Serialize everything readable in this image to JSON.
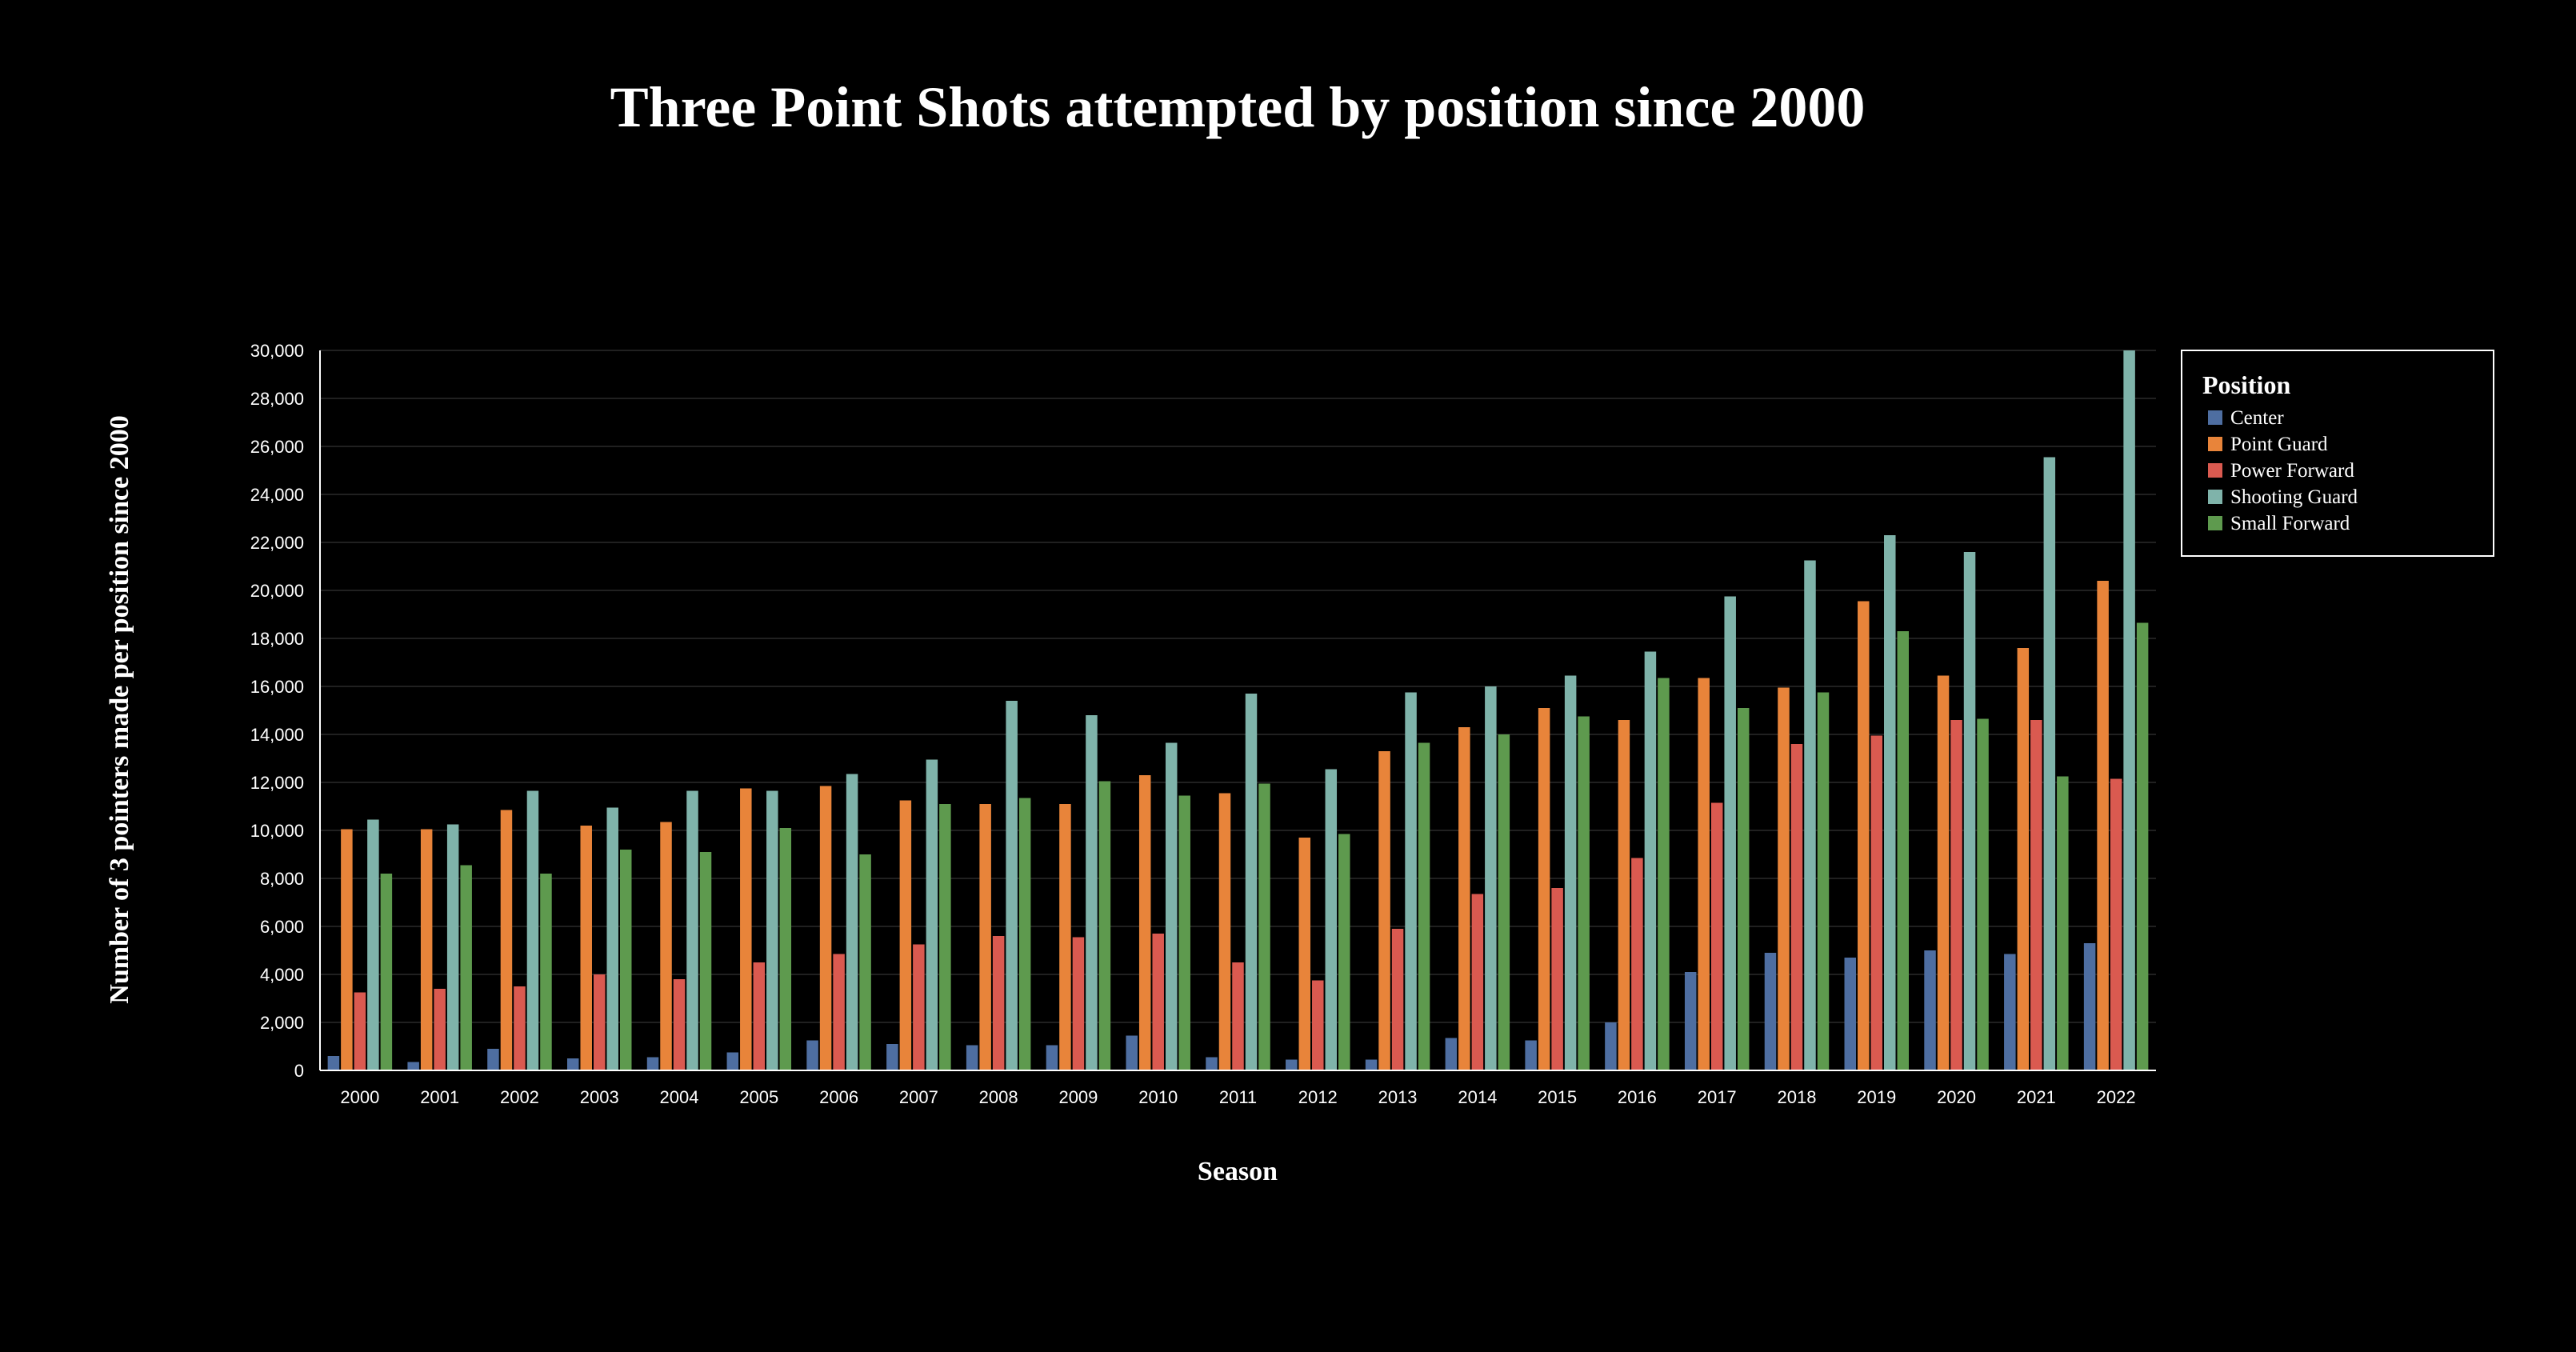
{
  "chart_data": {
    "type": "bar",
    "title": "Three Point Shots attempted by position since 2000",
    "xlabel": "Season",
    "ylabel": "Number of 3 pointers made per position since 2000",
    "ylim": [
      0,
      30000
    ],
    "yticks": [
      0,
      2000,
      4000,
      6000,
      8000,
      10000,
      12000,
      14000,
      16000,
      18000,
      20000,
      22000,
      24000,
      26000,
      28000,
      30000
    ],
    "ytick_labels": [
      "0",
      "2,000",
      "4,000",
      "6,000",
      "8,000",
      "10,000",
      "12,000",
      "14,000",
      "16,000",
      "18,000",
      "20,000",
      "22,000",
      "24,000",
      "26,000",
      "28,000",
      "30,000"
    ],
    "grid": true,
    "legend": {
      "title": "Position",
      "placement": "top-right"
    },
    "categories": [
      "2000",
      "2001",
      "2002",
      "2003",
      "2004",
      "2005",
      "2006",
      "2007",
      "2008",
      "2009",
      "2010",
      "2011",
      "2012",
      "2013",
      "2014",
      "2015",
      "2016",
      "2017",
      "2018",
      "2019",
      "2020",
      "2021",
      "2022"
    ],
    "series": [
      {
        "name": "Center",
        "color": "#4e6ea1",
        "values": [
          600,
          350,
          900,
          500,
          550,
          750,
          1250,
          1100,
          1050,
          1050,
          1450,
          550,
          450,
          450,
          1350,
          1250,
          2000,
          4100,
          4900,
          4700,
          5000,
          4850,
          5300
        ]
      },
      {
        "name": "Point Guard",
        "color": "#e8843a",
        "values": [
          10050,
          10050,
          10850,
          10200,
          10350,
          11750,
          11850,
          11250,
          11100,
          11100,
          12300,
          11550,
          9700,
          13300,
          14300,
          15100,
          14600,
          16350,
          15950,
          19550,
          16450,
          17600,
          20400
        ]
      },
      {
        "name": "Power Forward",
        "color": "#da5a50",
        "values": [
          3250,
          3400,
          3500,
          4000,
          3800,
          4500,
          4850,
          5250,
          5600,
          5550,
          5700,
          4500,
          3750,
          5900,
          7350,
          7600,
          8850,
          11150,
          13600,
          13950,
          14600,
          14600,
          12150
        ]
      },
      {
        "name": "Shooting Guard",
        "color": "#7fb3aa",
        "values": [
          10450,
          10250,
          11650,
          10950,
          11650,
          11650,
          12350,
          12950,
          15400,
          14800,
          13650,
          15700,
          12550,
          15750,
          16000,
          16450,
          17450,
          19750,
          21250,
          22300,
          21600,
          25550,
          30000
        ]
      },
      {
        "name": "Small Forward",
        "color": "#5e9a4e",
        "values": [
          8200,
          8550,
          8200,
          9200,
          9100,
          10100,
          9000,
          11100,
          11350,
          12050,
          11450,
          11950,
          9850,
          13650,
          14000,
          14750,
          16350,
          15100,
          15750,
          18300,
          14650,
          12250,
          18650
        ]
      }
    ]
  }
}
